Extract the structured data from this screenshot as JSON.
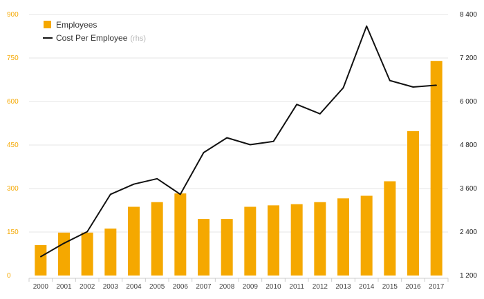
{
  "chart_data": {
    "type": "bar",
    "categories": [
      "2000",
      "2001",
      "2002",
      "2003",
      "2004",
      "2005",
      "2006",
      "2007",
      "2008",
      "2009",
      "2010",
      "2011",
      "2012",
      "2013",
      "2014",
      "2015",
      "2016",
      "2017"
    ],
    "series": [
      {
        "name": "Employees",
        "type": "bar",
        "axis": "left",
        "color": "#F5A800",
        "values": [
          105,
          148,
          148,
          162,
          237,
          253,
          283,
          195,
          195,
          237,
          242,
          246,
          253,
          266,
          275,
          325,
          498,
          740
        ]
      },
      {
        "name": "Cost Per Employee",
        "name_suffix": "(rhs)",
        "type": "line",
        "axis": "right",
        "color": "#111111",
        "values": [
          1720,
          2090,
          2410,
          3440,
          3720,
          3870,
          3440,
          4590,
          5000,
          4810,
          4900,
          5920,
          5660,
          6380,
          8080,
          6580,
          6400,
          6450
        ]
      }
    ],
    "y_left": {
      "ylim": [
        0,
        900
      ],
      "ticks": [
        0,
        150,
        300,
        450,
        600,
        750,
        900
      ],
      "tick_labels": [
        "0",
        "150",
        "300",
        "450",
        "600",
        "750",
        "900"
      ],
      "color": "#F5A800"
    },
    "y_right": {
      "ylim": [
        1200,
        8400
      ],
      "ticks": [
        1200,
        2400,
        3600,
        4800,
        6000,
        7200,
        8400
      ],
      "tick_labels": [
        "1 200",
        "2 400",
        "3 600",
        "4 800",
        "6 000",
        "7 200",
        "8 400"
      ],
      "color": "#222222"
    },
    "legend": {
      "placement": "top-left"
    },
    "grid": true,
    "title": "",
    "xlabel": "",
    "ylabel": ""
  }
}
